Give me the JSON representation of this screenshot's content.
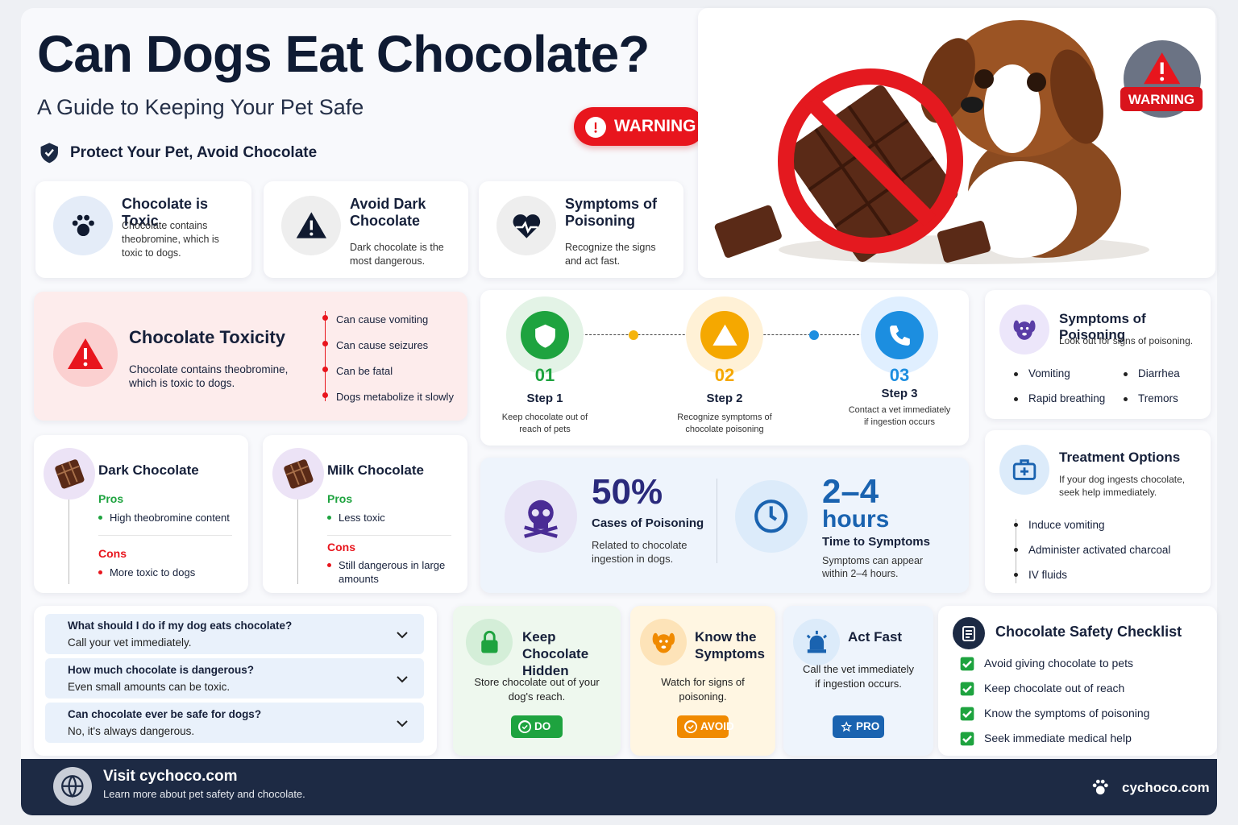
{
  "header": {
    "title": "Can Dogs Eat Chocolate?",
    "subtitle": "A Guide to Keeping Your Pet Safe",
    "tagline": "Protect Your Pet, Avoid Chocolate",
    "warning_badge": "WARNING",
    "corner_badge": "WARNING"
  },
  "top_cards": [
    {
      "title": "Chocolate is Toxic",
      "text": "Chocolate contains theobromine, which is toxic to dogs."
    },
    {
      "title": "Avoid Dark Chocolate",
      "text": "Dark chocolate is the most dangerous."
    },
    {
      "title": "Symptoms of Poisoning",
      "text": "Recognize the signs and act fast."
    }
  ],
  "toxicity": {
    "title": "Chocolate Toxicity",
    "text": "Chocolate contains theobromine, which is toxic to dogs.",
    "points": [
      "Can cause vomiting",
      "Can cause seizures",
      "Can be fatal",
      "Dogs metabolize it slowly"
    ]
  },
  "steps": [
    {
      "number": "01",
      "title": "Step 1",
      "text": "Keep chocolate out of reach of pets"
    },
    {
      "number": "02",
      "title": "Step 2",
      "text": "Recognize symptoms of chocolate poisoning"
    },
    {
      "number": "03",
      "title": "Step 3",
      "text": "Contact a vet immediately if ingestion occurs"
    }
  ],
  "symptoms": {
    "title": "Symptoms of Poisoning",
    "subtitle": "Look out for signs of poisoning.",
    "items": [
      "Vomiting",
      "Diarrhea",
      "Rapid breathing",
      "Tremors"
    ]
  },
  "chocolates": [
    {
      "title": "Dark Chocolate",
      "pros_label": "Pros",
      "pros": [
        "High theobromine content"
      ],
      "cons_label": "Cons",
      "cons": [
        "More toxic to dogs"
      ]
    },
    {
      "title": "Milk Chocolate",
      "pros_label": "Pros",
      "pros": [
        "Less toxic"
      ],
      "cons_label": "Cons",
      "cons": [
        "Still dangerous in large amounts"
      ]
    }
  ],
  "stats": [
    {
      "value": "50%",
      "title": "Cases of Poisoning",
      "text": "Related to chocolate ingestion in dogs."
    },
    {
      "value": "2–4",
      "unit": "hours",
      "title": "Time to Symptoms",
      "text": "Symptoms can appear within 2–4 hours."
    }
  ],
  "treatment": {
    "title": "Treatment Options",
    "subtitle": "If your dog ingests chocolate, seek help immediately.",
    "items": [
      "Induce vomiting",
      "Administer activated charcoal",
      "IV fluids"
    ]
  },
  "faq": [
    {
      "q": "What should I do if my dog eats chocolate?",
      "a": "Call your vet immediately."
    },
    {
      "q": "How much chocolate is dangerous?",
      "a": "Even small amounts can be toxic."
    },
    {
      "q": "Can chocolate ever be safe for dogs?",
      "a": "No, it's always dangerous."
    }
  ],
  "tips": [
    {
      "title": "Keep Chocolate Hidden",
      "text": "Store chocolate out of your dog's reach.",
      "badge": "DO"
    },
    {
      "title": "Know the Symptoms",
      "text": "Watch for signs of poisoning.",
      "badge": "AVOID"
    },
    {
      "title": "Act Fast",
      "text": "Call the vet immediately if ingestion occurs.",
      "badge": "PRO"
    }
  ],
  "checklist": {
    "title": "Chocolate Safety Checklist",
    "items": [
      "Avoid giving chocolate to pets",
      "Keep chocolate out of reach",
      "Know the symptoms of poisoning",
      "Seek immediate medical help"
    ]
  },
  "footer": {
    "title": "Visit cychoco.com",
    "text": "Learn more about pet safety and chocolate.",
    "brand": "cychoco.com"
  }
}
